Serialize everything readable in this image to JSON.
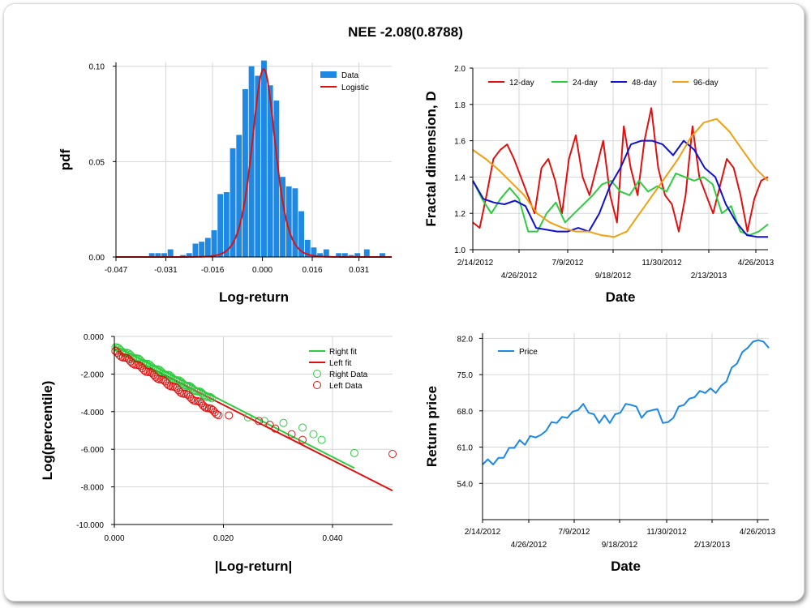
{
  "title": "NEE -2.08(0.8788)",
  "chart_data": [
    {
      "type": "bar",
      "id": "hist",
      "xlabel": "Log-return",
      "ylabel": "pdf",
      "xlim": [
        -0.047,
        0.0415
      ],
      "ylim": [
        0,
        0.102
      ],
      "xticks": [
        -0.047,
        -0.031,
        -0.016,
        0.0,
        0.016,
        0.031
      ],
      "xtick_labels": [
        "-0.047",
        "-0.031",
        "-0.016",
        "0.000",
        "0.016",
        "0.031"
      ],
      "yticks": [
        0,
        0.05,
        0.1
      ],
      "ytick_labels": [
        "0.00",
        "0.05",
        "0.10"
      ],
      "grid": true,
      "legend": [
        {
          "name": "Data",
          "color": "#1e88e5"
        },
        {
          "name": "Logistic",
          "color": "#e01010"
        }
      ],
      "bin_centers": [
        -0.0355,
        -0.0335,
        -0.0315,
        -0.0295,
        -0.0275,
        -0.0255,
        -0.0235,
        -0.0215,
        -0.0195,
        -0.0175,
        -0.0155,
        -0.0135,
        -0.0115,
        -0.0095,
        -0.0075,
        -0.0055,
        -0.0035,
        -0.0015,
        0.0005,
        0.0025,
        0.0045,
        0.0065,
        0.0085,
        0.0105,
        0.0125,
        0.0145,
        0.0165,
        0.0185,
        0.0205,
        0.0225,
        0.0245,
        0.0265,
        0.0285,
        0.0305,
        0.0335,
        0.0385
      ],
      "values": [
        0.002,
        0.002,
        0.002,
        0.004,
        0,
        0.001,
        0.002,
        0.007,
        0.008,
        0.01,
        0.014,
        0.033,
        0.034,
        0.057,
        0.064,
        0.088,
        0.1,
        0.095,
        0.103,
        0.09,
        0.082,
        0.042,
        0.037,
        0.036,
        0.024,
        0.009,
        0.005,
        0.002,
        0.004,
        0.0,
        0.002,
        0.002,
        0.001,
        0.002,
        0.004,
        0.002
      ],
      "fit": {
        "name": "Logistic",
        "mu": 0.0004,
        "s": 0.0025,
        "peak": 0.0985
      }
    },
    {
      "type": "line",
      "id": "fractal",
      "xlabel": "Date",
      "ylabel": "Fractal dimension, D",
      "ylim": [
        1.0,
        2.0
      ],
      "yticks": [
        1.0,
        1.2,
        1.4,
        1.6,
        1.8,
        2.0
      ],
      "ytick_labels": [
        "1.0",
        "1.2",
        "1.4",
        "1.6",
        "1.8",
        "2.0"
      ],
      "xtick_labels": [
        "2/14/2012",
        "4/26/2012",
        "7/9/2012",
        "9/18/2012",
        "11/30/2012",
        "2/13/2013",
        "4/26/2013"
      ],
      "legend_position": "top",
      "series": [
        {
          "name": "12-day",
          "color": "#e01010",
          "values": [
            1.15,
            1.12,
            1.3,
            1.5,
            1.55,
            1.58,
            1.5,
            1.4,
            1.3,
            1.2,
            1.45,
            1.5,
            1.38,
            1.2,
            1.5,
            1.63,
            1.4,
            1.3,
            1.45,
            1.6,
            1.3,
            1.15,
            1.68,
            1.45,
            1.3,
            1.6,
            1.78,
            1.45,
            1.3,
            1.25,
            1.1,
            1.3,
            1.68,
            1.4,
            1.3,
            1.2,
            1.35,
            1.5,
            1.45,
            1.3,
            1.1,
            1.28,
            1.38,
            1.4
          ]
        },
        {
          "name": "24-day",
          "color": "#2ecc40",
          "values": [
            1.38,
            1.28,
            1.2,
            1.28,
            1.34,
            1.28,
            1.1,
            1.1,
            1.2,
            1.26,
            1.15,
            1.2,
            1.25,
            1.3,
            1.36,
            1.38,
            1.32,
            1.3,
            1.38,
            1.32,
            1.35,
            1.32,
            1.42,
            1.4,
            1.38,
            1.4,
            1.36,
            1.2,
            1.24,
            1.1,
            1.08,
            1.1,
            1.14
          ]
        },
        {
          "name": "48-day",
          "color": "#1010d0",
          "values": [
            1.38,
            1.28,
            1.26,
            1.25,
            1.27,
            1.24,
            1.12,
            1.11,
            1.1,
            1.1,
            1.12,
            1.1,
            1.2,
            1.35,
            1.45,
            1.58,
            1.6,
            1.6,
            1.58,
            1.52,
            1.6,
            1.55,
            1.45,
            1.4,
            1.25,
            1.15,
            1.08,
            1.07,
            1.07
          ]
        },
        {
          "name": "96-day",
          "color": "#f0a010",
          "values": [
            1.55,
            1.5,
            1.44,
            1.37,
            1.3,
            1.2,
            1.15,
            1.12,
            1.1,
            1.1,
            1.08,
            1.07,
            1.1,
            1.2,
            1.3,
            1.4,
            1.5,
            1.62,
            1.7,
            1.72,
            1.65,
            1.55,
            1.45,
            1.38
          ]
        }
      ]
    },
    {
      "type": "scatter",
      "id": "tail",
      "xlabel": "|Log-return|",
      "ylabel": "Log(percentile)",
      "xlim": [
        0,
        0.051
      ],
      "ylim": [
        -10,
        0
      ],
      "xticks": [
        0,
        0.02,
        0.04
      ],
      "xtick_labels": [
        "0.000",
        "0.020",
        "0.040"
      ],
      "yticks": [
        0,
        -2,
        -4,
        -6,
        -8,
        -10
      ],
      "ytick_labels": [
        "0.000",
        "-2.000",
        "-4.000",
        "-6.000",
        "-8.000",
        "-10.000"
      ],
      "legend": [
        {
          "name": "Right fit",
          "color": "#2ecc40",
          "kind": "line"
        },
        {
          "name": "Left fit",
          "color": "#e01010",
          "kind": "line"
        },
        {
          "name": "Right Data",
          "color": "#2ecc40",
          "kind": "marker"
        },
        {
          "name": "Left Data",
          "color": "#e01010",
          "kind": "marker"
        }
      ],
      "right_fit": [
        [
          0,
          -0.5
        ],
        [
          0.044,
          -7.0
        ]
      ],
      "left_fit": [
        [
          0,
          -0.7
        ],
        [
          0.051,
          -8.2
        ]
      ],
      "right_data_far": [
        [
          0.0245,
          -4.3
        ],
        [
          0.0275,
          -4.5
        ],
        [
          0.031,
          -4.6
        ],
        [
          0.0345,
          -4.85
        ],
        [
          0.0365,
          -5.2
        ],
        [
          0.038,
          -5.5
        ],
        [
          0.044,
          -6.2
        ]
      ],
      "left_data_far": [
        [
          0.021,
          -4.2
        ],
        [
          0.0265,
          -4.5
        ],
        [
          0.0285,
          -4.7
        ],
        [
          0.0295,
          -4.9
        ],
        [
          0.0325,
          -5.2
        ],
        [
          0.0345,
          -5.5
        ],
        [
          0.051,
          -6.25
        ]
      ]
    },
    {
      "type": "line",
      "id": "price",
      "xlabel": "Date",
      "ylabel": "Return price",
      "ylim": [
        47.0,
        83.0
      ],
      "yticks": [
        54.0,
        61.0,
        68.0,
        75.0,
        82.0
      ],
      "ytick_labels": [
        "54.0",
        "61.0",
        "68.0",
        "75.0",
        "82.0"
      ],
      "xtick_labels": [
        "2/14/2012",
        "4/26/2012",
        "7/9/2012",
        "9/18/2012",
        "11/30/2012",
        "2/13/2013",
        "4/26/2013"
      ],
      "series": [
        {
          "name": "Price",
          "color": "#1e88e5",
          "values": [
            58.0,
            58.3,
            58.0,
            58.6,
            59.3,
            60.5,
            61.2,
            62.0,
            61.8,
            62.8,
            63.2,
            63.0,
            64.5,
            65.5,
            66.0,
            66.5,
            67.0,
            67.5,
            68.5,
            69.0,
            68.0,
            67.0,
            66.0,
            66.8,
            66.0,
            67.0,
            68.0,
            69.0,
            69.5,
            68.5,
            67.0,
            67.5,
            68.5,
            68.0,
            66.0,
            65.5,
            67.0,
            68.5,
            69.5,
            70.0,
            71.0,
            71.5,
            71.8,
            72.0,
            71.8,
            72.5,
            74.0,
            76.0,
            77.5,
            79.0,
            80.5,
            81.0,
            82.0,
            81.0,
            80.5
          ]
        }
      ]
    }
  ]
}
